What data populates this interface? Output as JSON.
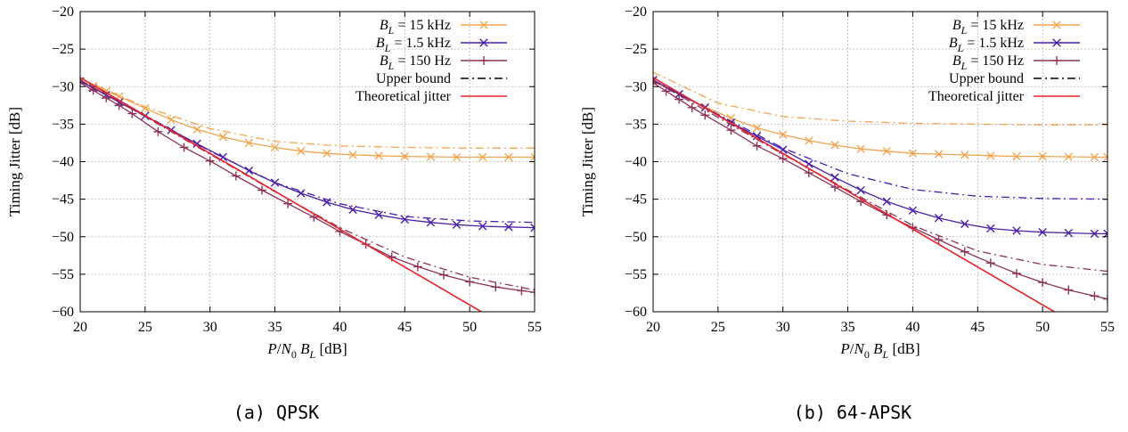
{
  "chart_data": [
    {
      "type": "line",
      "caption": "(a) QPSK",
      "xlabel": "P/N0 BL [dB]",
      "ylabel": "Timing Jitter [dB]",
      "xlim": [
        20,
        55
      ],
      "ylim": [
        -60,
        -20
      ],
      "xticks": [
        20,
        25,
        30,
        35,
        40,
        45,
        50,
        55
      ],
      "yticks": [
        -20,
        -25,
        -30,
        -35,
        -40,
        -45,
        -50,
        -55,
        -60
      ],
      "grid": true,
      "legend_position": "top-right",
      "legend": [
        "BL = 15 kHz",
        "BL = 1.5 kHz",
        "BL = 150 Hz",
        "Upper bound",
        "Theoretical jitter"
      ],
      "series": [
        {
          "name": "BL = 15 kHz",
          "color": "#f3a44f",
          "marker": "x",
          "x": [
            20,
            21,
            22,
            23,
            25,
            27,
            29,
            31,
            33,
            35,
            37,
            39,
            41,
            43,
            45,
            47,
            49,
            51,
            53,
            55
          ],
          "y": [
            -29.3,
            -29.9,
            -30.6,
            -31.3,
            -32.9,
            -34.4,
            -35.7,
            -36.7,
            -37.5,
            -38.1,
            -38.6,
            -38.9,
            -39.1,
            -39.2,
            -39.3,
            -39.35,
            -39.4,
            -39.4,
            -39.4,
            -39.4
          ]
        },
        {
          "name": "BL = 1.5 kHz",
          "color": "#4b1fa8",
          "marker": "x",
          "x": [
            20,
            21,
            22,
            23,
            25,
            27,
            29,
            31,
            33,
            35,
            37,
            39,
            41,
            43,
            45,
            47,
            49,
            51,
            53,
            55
          ],
          "y": [
            -29.3,
            -30.2,
            -31.1,
            -32.1,
            -33.9,
            -35.8,
            -37.6,
            -39.4,
            -41.2,
            -42.8,
            -44.2,
            -45.4,
            -46.4,
            -47.1,
            -47.7,
            -48.1,
            -48.4,
            -48.6,
            -48.7,
            -48.8
          ]
        },
        {
          "name": "BL = 150 Hz",
          "color": "#8c3357",
          "marker": "+",
          "x": [
            20,
            21,
            22,
            23,
            24,
            26,
            28,
            30,
            32,
            34,
            36,
            38,
            40,
            42,
            44,
            46,
            48,
            50,
            52,
            54,
            55
          ],
          "y": [
            -29.5,
            -30.5,
            -31.5,
            -32.5,
            -33.6,
            -36.0,
            -38.1,
            -39.9,
            -41.9,
            -43.8,
            -45.6,
            -47.4,
            -49.3,
            -51.0,
            -52.7,
            -54.0,
            -55.1,
            -56.0,
            -56.7,
            -57.2,
            -57.4
          ]
        },
        {
          "name": "Upper bound (15 kHz)",
          "color": "#f3a44f",
          "style": "dash-dot",
          "x": [
            20,
            25,
            30,
            35,
            40,
            45,
            50,
            55
          ],
          "y": [
            -28.9,
            -32.7,
            -35.6,
            -37.3,
            -37.9,
            -38.1,
            -38.2,
            -38.2
          ]
        },
        {
          "name": "Upper bound (1.5 kHz)",
          "color": "#4b1fa8",
          "style": "dash-dot",
          "x": [
            20,
            25,
            30,
            35,
            40,
            45,
            50,
            55
          ],
          "y": [
            -29.2,
            -33.8,
            -38.6,
            -42.8,
            -45.6,
            -47.3,
            -47.9,
            -48.1
          ]
        },
        {
          "name": "Upper bound (150 Hz)",
          "color": "#8c3357",
          "style": "dash-dot",
          "x": [
            20,
            25,
            30,
            35,
            40,
            45,
            50,
            55
          ],
          "y": [
            -29.1,
            -34.0,
            -39.0,
            -44.0,
            -48.8,
            -52.7,
            -55.4,
            -57.1
          ]
        },
        {
          "name": "Theoretical jitter",
          "color": "#e8222a",
          "style": "solid",
          "x": [
            20,
            50.9
          ],
          "y": [
            -28.8,
            -60
          ]
        }
      ]
    },
    {
      "type": "line",
      "caption": "(b) 64-APSK",
      "xlabel": "P/N0 BL [dB]",
      "ylabel": "Timing Jitter [dB]",
      "xlim": [
        20,
        55
      ],
      "ylim": [
        -60,
        -20
      ],
      "xticks": [
        20,
        25,
        30,
        35,
        40,
        45,
        50,
        55
      ],
      "yticks": [
        -20,
        -25,
        -30,
        -35,
        -40,
        -45,
        -50,
        -55,
        -60
      ],
      "grid": true,
      "legend_position": "top-right",
      "legend": [
        "BL = 15 kHz",
        "BL = 1.5 kHz",
        "BL = 150 Hz",
        "Upper bound",
        "Theoretical jitter"
      ],
      "series": [
        {
          "name": "BL = 15 kHz",
          "color": "#f3a44f",
          "marker": "x",
          "x": [
            20,
            22,
            24,
            26,
            28,
            30,
            32,
            34,
            36,
            38,
            40,
            42,
            44,
            46,
            48,
            50,
            52,
            54,
            55
          ],
          "y": [
            -29.3,
            -31.0,
            -32.7,
            -34.2,
            -35.5,
            -36.4,
            -37.2,
            -37.8,
            -38.3,
            -38.6,
            -38.9,
            -39.0,
            -39.1,
            -39.2,
            -39.3,
            -39.3,
            -39.35,
            -39.4,
            -39.4
          ]
        },
        {
          "name": "BL = 1.5 kHz",
          "color": "#4b1fa8",
          "marker": "x",
          "x": [
            20,
            22,
            24,
            26,
            28,
            30,
            32,
            34,
            36,
            38,
            40,
            42,
            44,
            46,
            48,
            50,
            52,
            54,
            55
          ],
          "y": [
            -29.1,
            -31.0,
            -32.8,
            -34.8,
            -36.6,
            -38.4,
            -40.3,
            -42.1,
            -43.8,
            -45.3,
            -46.5,
            -47.5,
            -48.3,
            -48.9,
            -49.2,
            -49.4,
            -49.5,
            -49.6,
            -49.6
          ]
        },
        {
          "name": "BL = 150 Hz",
          "color": "#8c3357",
          "marker": "+",
          "x": [
            20,
            21,
            22,
            23,
            24,
            26,
            28,
            30,
            32,
            34,
            36,
            38,
            40,
            42,
            44,
            46,
            48,
            50,
            52,
            54,
            55
          ],
          "y": [
            -29.5,
            -30.6,
            -31.7,
            -32.8,
            -33.8,
            -35.8,
            -37.9,
            -39.6,
            -41.5,
            -43.4,
            -45.3,
            -47.1,
            -48.8,
            -50.4,
            -52.0,
            -53.5,
            -54.9,
            -56.1,
            -57.1,
            -57.9,
            -58.3
          ]
        },
        {
          "name": "Upper bound (15 kHz)",
          "color": "#f3a44f",
          "style": "dash-dot",
          "x": [
            20,
            25,
            30,
            35,
            40,
            45,
            50,
            55
          ],
          "y": [
            -28.1,
            -32.2,
            -34.0,
            -34.6,
            -34.9,
            -35.0,
            -35.1,
            -35.1
          ]
        },
        {
          "name": "Upper bound (1.5 kHz)",
          "color": "#4b1fa8",
          "style": "dash-dot",
          "x": [
            20,
            25,
            30,
            35,
            40,
            45,
            50,
            55
          ],
          "y": [
            -29.1,
            -33.7,
            -38.2,
            -41.6,
            -43.7,
            -44.6,
            -44.9,
            -45.0
          ]
        },
        {
          "name": "Upper bound (150 Hz)",
          "color": "#8c3357",
          "style": "dash-dot",
          "x": [
            20,
            25,
            30,
            35,
            40,
            45,
            50,
            55
          ],
          "y": [
            -29.2,
            -34.1,
            -39.0,
            -43.8,
            -48.5,
            -51.9,
            -53.7,
            -54.6
          ]
        },
        {
          "name": "Theoretical jitter",
          "color": "#e8222a",
          "style": "solid",
          "x": [
            20,
            50.9
          ],
          "y": [
            -28.8,
            -60
          ]
        }
      ]
    }
  ]
}
